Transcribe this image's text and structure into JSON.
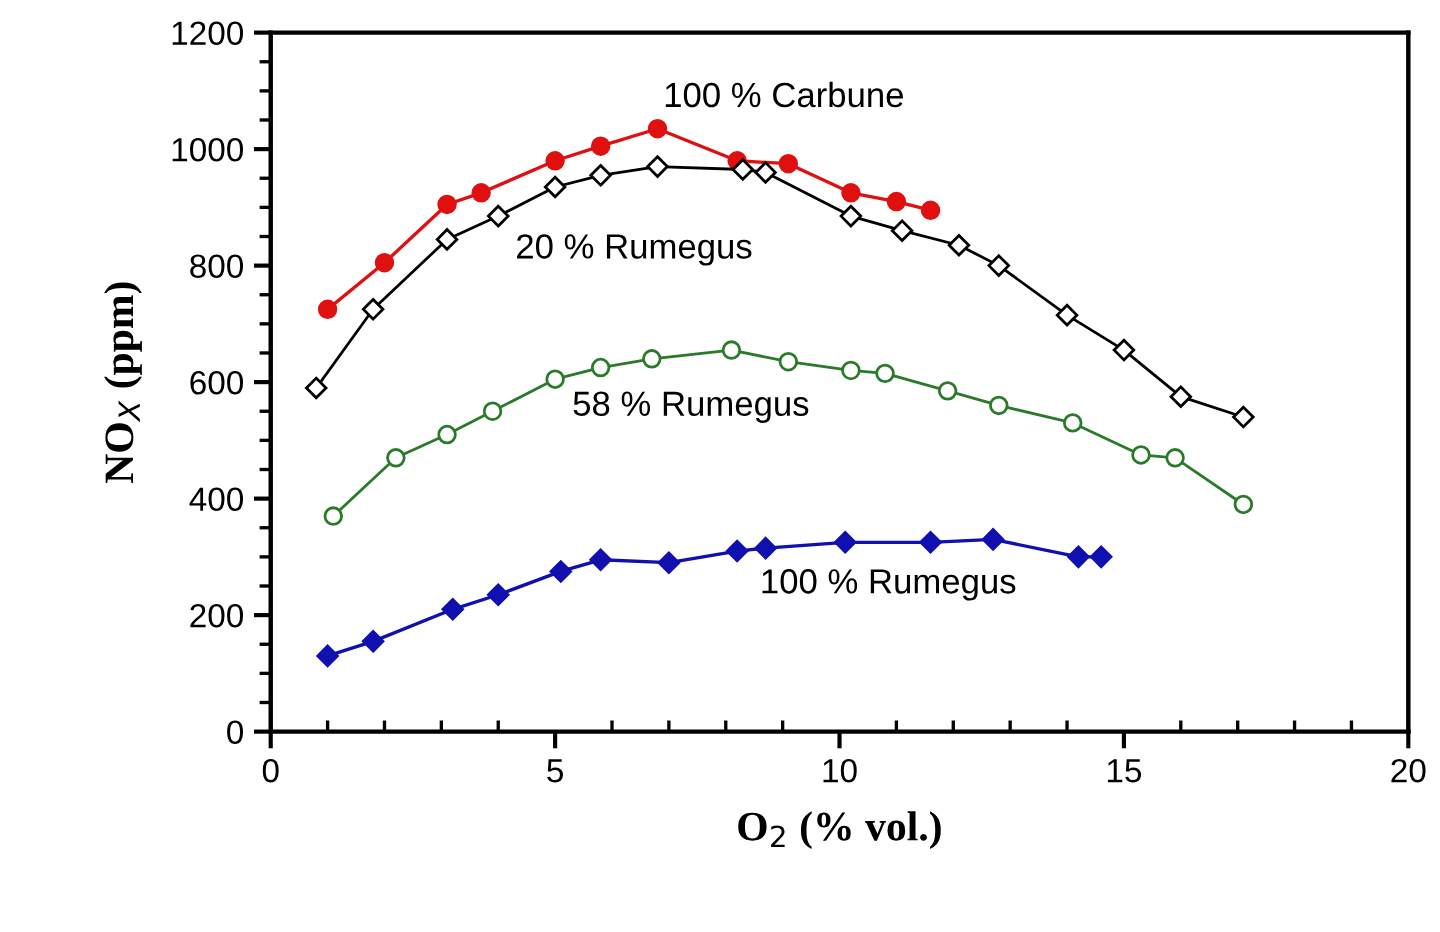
{
  "chart_data": {
    "type": "line",
    "xlabel": "O$_{2}$ (% vol.)",
    "ylabel": "NO$_{X}$ (ppm)",
    "xlim": [
      0,
      20
    ],
    "xticks": [
      0,
      5,
      10,
      15,
      20
    ],
    "ylim": [
      0,
      1200
    ],
    "yticks": [
      0,
      200,
      400,
      600,
      800,
      1000,
      1200
    ],
    "grid": false,
    "legend": false,
    "line_style": "solid",
    "series": [
      {
        "name": "100 % Carbune",
        "color": "#e01010",
        "marker": "circle",
        "x": [
          1,
          2,
          3.1,
          3.7,
          5,
          5.8,
          6.8,
          8.2,
          9.1,
          10.2,
          11,
          11.6
        ],
        "values": [
          725,
          805,
          905,
          925,
          980,
          1005,
          1035,
          980,
          975,
          925,
          910,
          895
        ]
      },
      {
        "name": "20 % Rumegus",
        "color": "#000000",
        "marker": "diamond",
        "x": [
          0.8,
          1.8,
          3.1,
          4,
          5,
          5.8,
          6.8,
          8.3,
          8.7,
          10.2,
          11.1,
          12.1,
          12.8,
          14,
          15,
          16,
          17.1
        ],
        "values": [
          590,
          725,
          845,
          885,
          935,
          955,
          970,
          965,
          960,
          885,
          860,
          835,
          800,
          715,
          655,
          575,
          540
        ]
      },
      {
        "name": "58 % Rumegus",
        "color": "#2a7a2a",
        "marker": "circle",
        "x": [
          1.1,
          2.2,
          3.1,
          3.9,
          5,
          5.8,
          6.7,
          8.1,
          9.1,
          10.2,
          10.8,
          11.9,
          12.8,
          14.1,
          15.3,
          15.9,
          17.1
        ],
        "values": [
          370,
          470,
          510,
          550,
          605,
          625,
          640,
          655,
          635,
          620,
          615,
          585,
          560,
          530,
          475,
          470,
          390
        ]
      },
      {
        "name": "100 % Rumegus",
        "color": "#1010b0",
        "marker": "diamond",
        "x": [
          1,
          1.8,
          3.2,
          4,
          5.1,
          5.8,
          7,
          8.2,
          8.7,
          10.1,
          11.6,
          12.7,
          14.2,
          14.6
        ],
        "values": [
          130,
          155,
          210,
          235,
          275,
          295,
          290,
          310,
          315,
          325,
          325,
          330,
          300,
          300
        ]
      }
    ]
  }
}
